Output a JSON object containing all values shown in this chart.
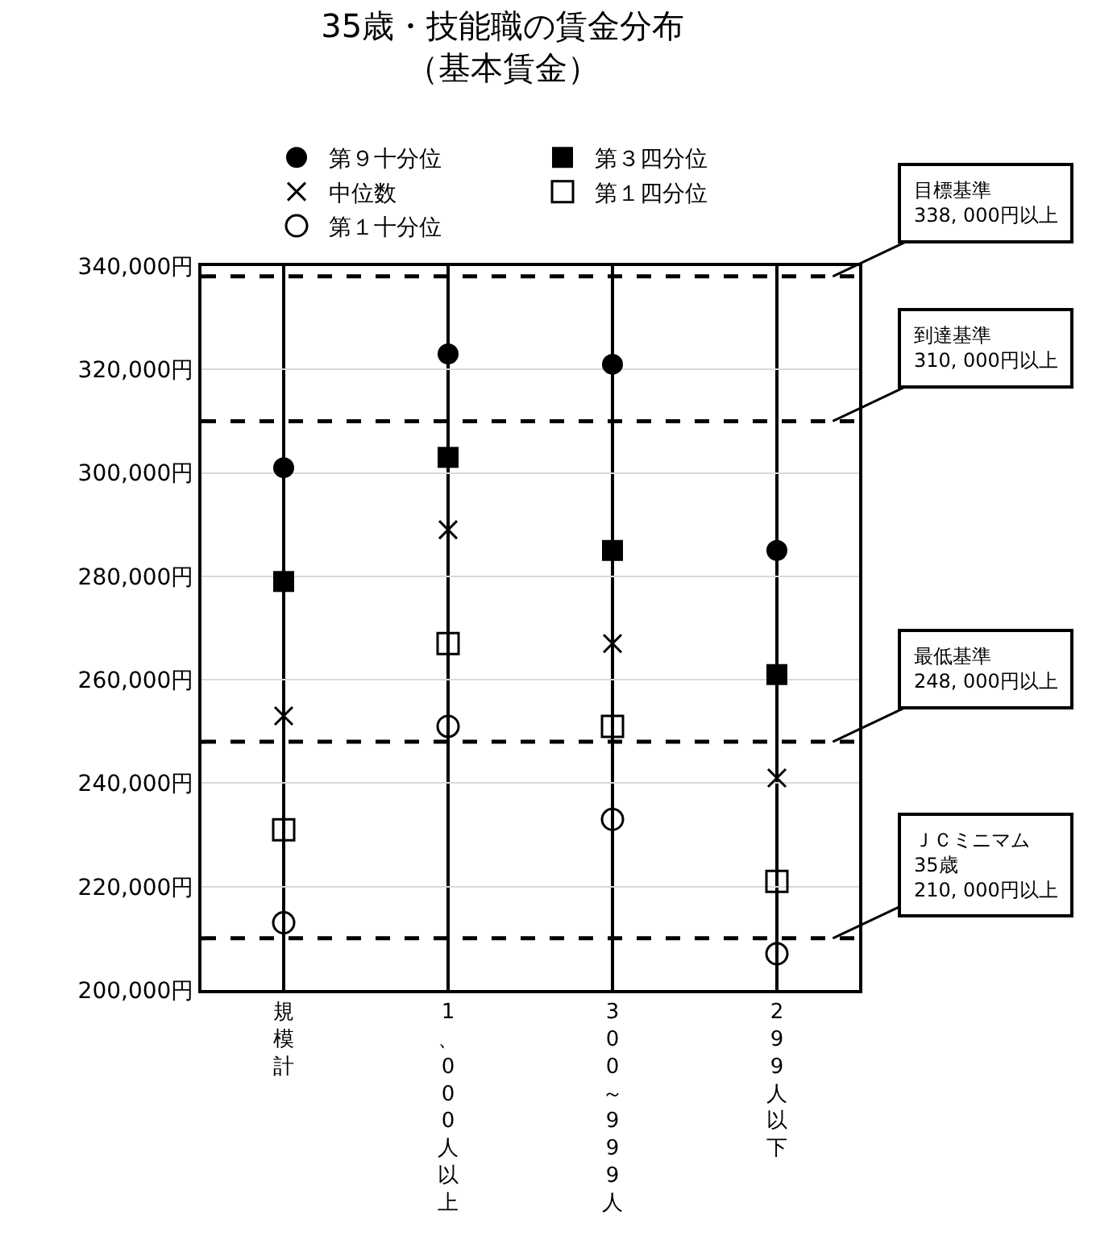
{
  "chart_data": {
    "type": "scatter",
    "title": "35歳・技能職の賃金分布",
    "subtitle": "（基本賃金）",
    "categories": [
      "規模計",
      "1、000人以上",
      "300～999人",
      "299人以下"
    ],
    "series": [
      {
        "name": "第９十分位",
        "color": "#000000",
        "marker": "circle",
        "values": [
          301000,
          323000,
          321000,
          285000
        ]
      },
      {
        "name": "第３四分位",
        "color": "#000000",
        "marker": "square",
        "values": [
          279000,
          303000,
          285000,
          261000
        ]
      },
      {
        "name": "中位数",
        "color": "#000000",
        "marker": "x",
        "values": [
          253000,
          289000,
          267000,
          241000
        ]
      },
      {
        "name": "第１四分位",
        "color": "#000000",
        "marker": "square-open",
        "values": [
          231000,
          267000,
          251000,
          221000
        ]
      },
      {
        "name": "第１十分位",
        "color": "#000000",
        "marker": "circle-open",
        "values": [
          213000,
          251000,
          233000,
          207000
        ]
      }
    ],
    "ylim": [
      200000,
      340000
    ],
    "yticks": [
      {
        "value": 200000,
        "label": "200,000円"
      },
      {
        "value": 220000,
        "label": "220,000円"
      },
      {
        "value": 240000,
        "label": "240,000円"
      },
      {
        "value": 260000,
        "label": "260,000円"
      },
      {
        "value": 280000,
        "label": "280,000円"
      },
      {
        "value": 300000,
        "label": "300,000円"
      },
      {
        "value": 320000,
        "label": "320,000円"
      },
      {
        "value": 340000,
        "label": "340,000円"
      }
    ],
    "ref_lines": [
      {
        "axis": "y",
        "value": 338000,
        "label": "目標基準\n338, 000円以上",
        "color": "#000000",
        "line_style": "dashed"
      },
      {
        "axis": "y",
        "value": 310000,
        "label": "到達基準\n310, 000円以上",
        "color": "#000000",
        "line_style": "dashed"
      },
      {
        "axis": "y",
        "value": 248000,
        "label": "最低基準\n248, 000円以上",
        "color": "#000000",
        "line_style": "dashed"
      },
      {
        "axis": "y",
        "value": 210000,
        "label": "ＪＣミニマム\n35歳\n210, 000円以上",
        "color": "#000000",
        "line_style": "dashed"
      }
    ],
    "grid": true,
    "legend": "top"
  }
}
